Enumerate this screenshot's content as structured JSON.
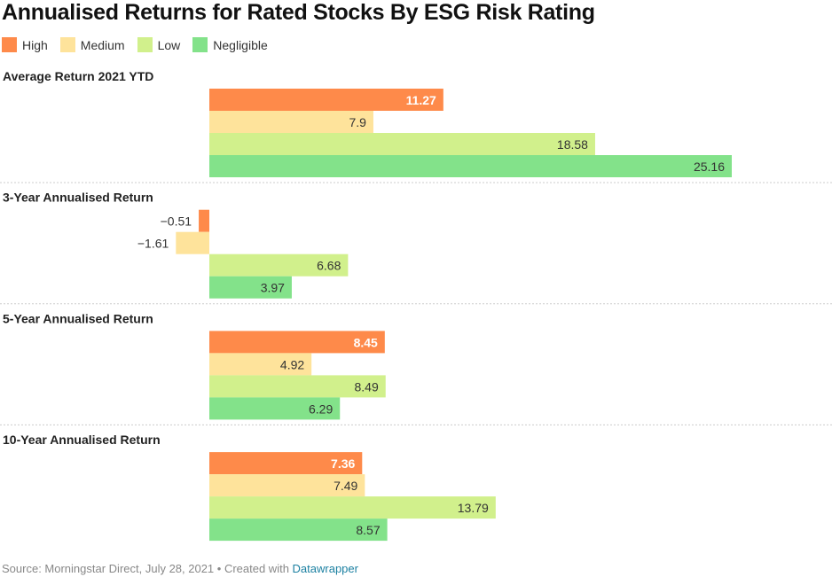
{
  "title": "Annualised Returns for Rated Stocks By ESG Risk Rating",
  "footer": {
    "source": "Source: Morningstar Direct, July 28, 2021 • Created with ",
    "link": "Datawrapper"
  },
  "chart_data": {
    "type": "bar",
    "title": "Annualised Returns for Rated Stocks By ESG Risk Rating",
    "legend_position": "top-left",
    "series_names": [
      "High",
      "Medium",
      "Low",
      "Negligible"
    ],
    "colors": [
      "#fe8a4a",
      "#fee39b",
      "#d1f08c",
      "#83e28a"
    ],
    "groups": [
      {
        "label": "Average Return 2021 YTD",
        "values": [
          11.27,
          7.9,
          18.58,
          25.16
        ]
      },
      {
        "label": "3-Year Annualised Return",
        "values": [
          -0.51,
          -1.61,
          6.68,
          3.97
        ]
      },
      {
        "label": "5-Year Annualised Return",
        "values": [
          8.45,
          4.92,
          8.49,
          6.29
        ]
      },
      {
        "label": "10-Year Annualised Return",
        "values": [
          7.36,
          7.49,
          13.79,
          8.57
        ]
      }
    ],
    "xlim": [
      -6.1,
      29.9
    ]
  }
}
